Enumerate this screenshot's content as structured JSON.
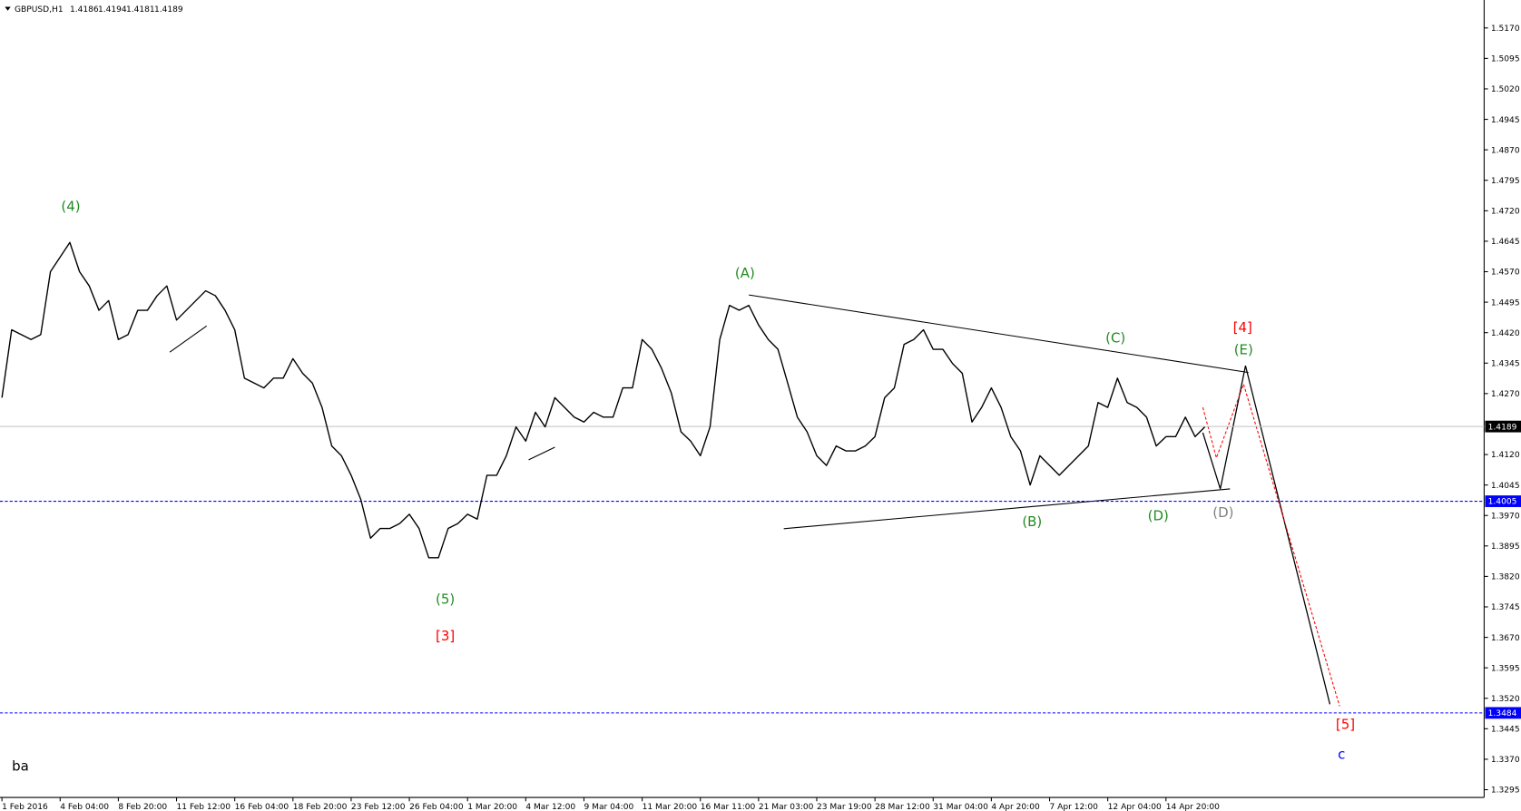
{
  "chart_data": {
    "type": "line",
    "symbol": "GBPUSD,H1",
    "ohlc": [
      1.4186,
      1.4194,
      1.4181,
      1.4189
    ],
    "categories": [
      "1 Feb 2016",
      null,
      null,
      null,
      null,
      null,
      "4 Feb 04:00",
      null,
      null,
      null,
      null,
      null,
      "8 Feb 20:00",
      null,
      null,
      null,
      null,
      null,
      "11 Feb 12:00",
      null,
      null,
      null,
      null,
      null,
      "16 Feb 04:00",
      null,
      null,
      null,
      null,
      null,
      "18 Feb 20:00",
      null,
      null,
      null,
      null,
      null,
      "23 Feb 12:00",
      null,
      null,
      null,
      null,
      null,
      "26 Feb 04:00",
      null,
      null,
      null,
      null,
      null,
      "1 Mar 20:00",
      null,
      null,
      null,
      null,
      null,
      "4 Mar 12:00",
      null,
      null,
      null,
      null,
      null,
      "9 Mar 04:00",
      null,
      null,
      null,
      null,
      null,
      "11 Mar 20:00",
      null,
      null,
      null,
      null,
      null,
      "16 Mar 11:00",
      null,
      null,
      null,
      null,
      null,
      "21 Mar 03:00",
      null,
      null,
      null,
      null,
      null,
      "23 Mar 19:00",
      null,
      null,
      null,
      null,
      null,
      "28 Mar 12:00",
      null,
      null,
      null,
      null,
      null,
      "31 Mar 04:00",
      null,
      null,
      null,
      null,
      null,
      "4 Apr 20:00",
      null,
      null,
      null,
      null,
      null,
      "7 Apr 12:00",
      null,
      null,
      null,
      null,
      null,
      "12 Apr 04:00",
      null,
      null,
      null,
      null,
      null,
      "14 Apr 20:00",
      null,
      null,
      null,
      null
    ],
    "series": [
      {
        "name": "GBPUSD",
        "color": "#000000",
        "values": [
          1.426,
          1.4427,
          1.4415,
          1.4403,
          1.4415,
          1.457,
          1.4606,
          1.4642,
          1.457,
          1.4535,
          1.4475,
          1.4499,
          1.4403,
          1.4415,
          1.4475,
          1.4475,
          1.4511,
          1.4535,
          1.4451,
          1.4475,
          1.4499,
          1.4523,
          1.4511,
          1.4475,
          1.4427,
          1.4308,
          1.4296,
          1.4284,
          1.4308,
          1.4308,
          1.4356,
          1.432,
          1.4296,
          1.4236,
          1.4141,
          1.4117,
          1.4069,
          1.4009,
          1.3914,
          1.3938,
          1.3938,
          1.395,
          1.3973,
          1.3938,
          1.3866,
          1.3866,
          1.3938,
          1.395,
          1.3973,
          1.3961,
          1.4069,
          1.4069,
          1.4117,
          1.4188,
          1.4153,
          1.4224,
          1.4188,
          1.426,
          1.4236,
          1.4212,
          1.42,
          1.4224,
          1.4212,
          1.4212,
          1.4284,
          1.4284,
          1.4403,
          1.4379,
          1.4332,
          1.4272,
          1.4176,
          1.4153,
          1.4117,
          1.4188,
          1.4403,
          1.4487,
          1.4475,
          1.4487,
          1.4439,
          1.4403,
          1.4379,
          1.4296,
          1.4212,
          1.4176,
          1.4117,
          1.4093,
          1.4141,
          1.4129,
          1.4129,
          1.4141,
          1.4164,
          1.426,
          1.4284,
          1.4391,
          1.4403,
          1.4427,
          1.4379,
          1.4379,
          1.4344,
          1.432,
          1.42,
          1.4236,
          1.4284,
          1.4236,
          1.4164,
          1.4129,
          1.4045,
          1.4117,
          1.4093,
          1.4069,
          1.4093,
          1.4117,
          1.4141,
          1.4248,
          1.4236,
          1.4308,
          1.4248,
          1.4236,
          1.4212,
          1.4141,
          1.4164,
          1.4164,
          1.4212,
          1.4164,
          1.4188
        ]
      }
    ],
    "ylim": [
      1.3276,
      1.5234
    ],
    "yticks": [
      {
        "value": 1.517,
        "label": "1.5170"
      },
      1.5095,
      {
        "value": 1.502,
        "label": "1.5020"
      },
      1.4945,
      {
        "value": 1.487,
        "label": "1.4870"
      },
      1.4795,
      {
        "value": 1.472,
        "label": "1.4720"
      },
      1.4645,
      {
        "value": 1.457,
        "label": "1.4570"
      },
      1.4495,
      {
        "value": 1.442,
        "label": "1.4420"
      },
      1.4345,
      {
        "value": 1.427,
        "label": "1.4270"
      },
      {
        "value": 1.412,
        "label": "1.4120"
      },
      1.4045,
      {
        "value": 1.397,
        "label": "1.3970"
      },
      1.3895,
      {
        "value": 1.382,
        "label": "1.3820"
      },
      1.3745,
      {
        "value": 1.367,
        "label": "1.3670"
      },
      1.3595,
      {
        "value": 1.352,
        "label": "1.3520"
      },
      1.3445,
      {
        "value": 1.337,
        "label": "1.3370"
      },
      1.3295
    ],
    "price_lines": [
      {
        "value": 1.4189,
        "color": "#c0c0c0",
        "label_bg": "#000000",
        "dashed": false
      },
      {
        "value": 1.4005,
        "color": "#0000ff",
        "label_bg": "#0000ff",
        "dashed": true
      },
      {
        "value": 1.3484,
        "color": "#0000ff",
        "label_bg": "#0000ff",
        "dashed": true
      }
    ],
    "annotations": [
      {
        "text": "(4)",
        "color": "#228b22"
      },
      {
        "text": "(5)",
        "color": "#228b22"
      },
      {
        "text": "[3]",
        "color": "#ff0000"
      },
      {
        "text": "(A)",
        "color": "#228b22"
      },
      {
        "text": "(B)",
        "color": "#228b22"
      },
      {
        "text": "(C)",
        "color": "#228b22"
      },
      {
        "text": "(D)",
        "color": "#228b22"
      },
      {
        "text": "(D)",
        "color": "#808080"
      },
      {
        "text": "[4]",
        "color": "#ff0000"
      },
      {
        "text": "(E)",
        "color": "#228b22"
      },
      {
        "text": "[5]",
        "color": "#ff0000"
      },
      {
        "text": "c",
        "color": "#0000ff"
      },
      {
        "text": "ba",
        "color": "#000000"
      }
    ]
  }
}
